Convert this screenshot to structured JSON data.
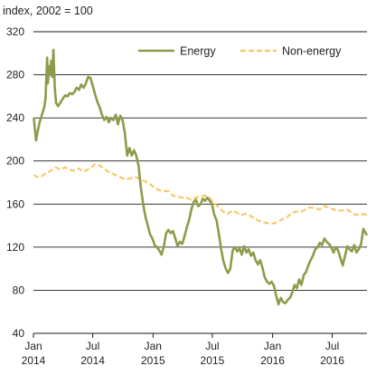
{
  "chart_data": {
    "type": "line",
    "title": "",
    "ylabel": "index, 2002 = 100",
    "xlabel": "",
    "ylim": [
      40,
      320
    ],
    "yticks": [
      40,
      80,
      120,
      160,
      200,
      240,
      280,
      320
    ],
    "xlim": [
      "2014-01-01",
      "2016-10-15"
    ],
    "xticks": [
      {
        "date": "2014-01-01",
        "month": "Jan",
        "year": "2014"
      },
      {
        "date": "2014-07-01",
        "month": "Jul",
        "year": "2014"
      },
      {
        "date": "2015-01-01",
        "month": "Jan",
        "year": "2015"
      },
      {
        "date": "2015-07-01",
        "month": "Jul",
        "year": "2015"
      },
      {
        "date": "2016-01-01",
        "month": "Jan",
        "year": "2016"
      },
      {
        "date": "2016-07-01",
        "month": "Jul",
        "year": "2016"
      }
    ],
    "grid": "horizontal",
    "legend_position": "top-right",
    "series": [
      {
        "name": "Energy",
        "color": "#8f9a4a",
        "style": "solid",
        "points": [
          [
            "2014-01-02",
            240
          ],
          [
            "2014-01-06",
            228
          ],
          [
            "2014-01-09",
            219
          ],
          [
            "2014-01-13",
            226
          ],
          [
            "2014-01-20",
            236
          ],
          [
            "2014-01-27",
            243
          ],
          [
            "2014-02-03",
            250
          ],
          [
            "2014-02-07",
            258
          ],
          [
            "2014-02-10",
            282
          ],
          [
            "2014-02-12",
            296
          ],
          [
            "2014-02-14",
            272
          ],
          [
            "2014-02-18",
            288
          ],
          [
            "2014-02-21",
            280
          ],
          [
            "2014-02-24",
            293
          ],
          [
            "2014-02-27",
            278
          ],
          [
            "2014-03-03",
            303
          ],
          [
            "2014-03-07",
            268
          ],
          [
            "2014-03-11",
            254
          ],
          [
            "2014-03-17",
            251
          ],
          [
            "2014-03-24",
            254
          ],
          [
            "2014-04-01",
            258
          ],
          [
            "2014-04-08",
            261
          ],
          [
            "2014-04-15",
            260
          ],
          [
            "2014-04-22",
            263
          ],
          [
            "2014-04-29",
            262
          ],
          [
            "2014-05-06",
            264
          ],
          [
            "2014-05-13",
            268
          ],
          [
            "2014-05-20",
            266
          ],
          [
            "2014-05-27",
            271
          ],
          [
            "2014-06-03",
            268
          ],
          [
            "2014-06-10",
            272
          ],
          [
            "2014-06-17",
            278
          ],
          [
            "2014-06-24",
            277
          ],
          [
            "2014-07-01",
            270
          ],
          [
            "2014-07-08",
            262
          ],
          [
            "2014-07-15",
            255
          ],
          [
            "2014-07-22",
            250
          ],
          [
            "2014-07-29",
            243
          ],
          [
            "2014-08-05",
            238
          ],
          [
            "2014-08-12",
            241
          ],
          [
            "2014-08-19",
            236
          ],
          [
            "2014-08-26",
            240
          ],
          [
            "2014-09-02",
            238
          ],
          [
            "2014-09-09",
            243
          ],
          [
            "2014-09-16",
            234
          ],
          [
            "2014-09-23",
            242
          ],
          [
            "2014-09-30",
            238
          ],
          [
            "2014-10-07",
            226
          ],
          [
            "2014-10-14",
            205
          ],
          [
            "2014-10-21",
            212
          ],
          [
            "2014-10-28",
            205
          ],
          [
            "2014-11-04",
            210
          ],
          [
            "2014-11-11",
            205
          ],
          [
            "2014-11-18",
            195
          ],
          [
            "2014-11-25",
            175
          ],
          [
            "2014-12-02",
            160
          ],
          [
            "2014-12-09",
            148
          ],
          [
            "2014-12-16",
            140
          ],
          [
            "2014-12-23",
            132
          ],
          [
            "2014-12-30",
            128
          ],
          [
            "2015-01-06",
            122
          ],
          [
            "2015-01-13",
            120
          ],
          [
            "2015-01-20",
            117
          ],
          [
            "2015-01-27",
            113
          ],
          [
            "2015-02-03",
            121
          ],
          [
            "2015-02-10",
            133
          ],
          [
            "2015-02-17",
            136
          ],
          [
            "2015-02-24",
            133
          ],
          [
            "2015-03-03",
            135
          ],
          [
            "2015-03-10",
            128
          ],
          [
            "2015-03-17",
            121
          ],
          [
            "2015-03-24",
            125
          ],
          [
            "2015-03-31",
            123
          ],
          [
            "2015-04-07",
            130
          ],
          [
            "2015-04-14",
            138
          ],
          [
            "2015-04-21",
            145
          ],
          [
            "2015-04-28",
            155
          ],
          [
            "2015-05-05",
            162
          ],
          [
            "2015-05-12",
            164
          ],
          [
            "2015-05-19",
            158
          ],
          [
            "2015-05-26",
            160
          ],
          [
            "2015-06-02",
            165
          ],
          [
            "2015-06-09",
            163
          ],
          [
            "2015-06-16",
            166
          ],
          [
            "2015-06-23",
            163
          ],
          [
            "2015-06-30",
            160
          ],
          [
            "2015-07-07",
            150
          ],
          [
            "2015-07-14",
            145
          ],
          [
            "2015-07-21",
            132
          ],
          [
            "2015-07-28",
            118
          ],
          [
            "2015-08-04",
            107
          ],
          [
            "2015-08-11",
            100
          ],
          [
            "2015-08-18",
            96
          ],
          [
            "2015-08-25",
            100
          ],
          [
            "2015-09-01",
            117
          ],
          [
            "2015-09-08",
            120
          ],
          [
            "2015-09-15",
            116
          ],
          [
            "2015-09-22",
            119
          ],
          [
            "2015-09-29",
            113
          ],
          [
            "2015-10-06",
            121
          ],
          [
            "2015-10-13",
            115
          ],
          [
            "2015-10-20",
            118
          ],
          [
            "2015-10-27",
            112
          ],
          [
            "2015-11-03",
            115
          ],
          [
            "2015-11-10",
            108
          ],
          [
            "2015-11-17",
            104
          ],
          [
            "2015-11-24",
            108
          ],
          [
            "2015-12-01",
            101
          ],
          [
            "2015-12-08",
            92
          ],
          [
            "2015-12-15",
            88
          ],
          [
            "2015-12-22",
            86
          ],
          [
            "2015-12-29",
            88
          ],
          [
            "2016-01-05",
            84
          ],
          [
            "2016-01-12",
            75
          ],
          [
            "2016-01-19",
            67
          ],
          [
            "2016-01-26",
            73
          ],
          [
            "2016-02-02",
            69
          ],
          [
            "2016-02-09",
            68
          ],
          [
            "2016-02-16",
            71
          ],
          [
            "2016-02-23",
            73
          ],
          [
            "2016-03-01",
            78
          ],
          [
            "2016-03-08",
            85
          ],
          [
            "2016-03-15",
            82
          ],
          [
            "2016-03-22",
            90
          ],
          [
            "2016-03-29",
            85
          ],
          [
            "2016-04-05",
            94
          ],
          [
            "2016-04-12",
            97
          ],
          [
            "2016-04-19",
            103
          ],
          [
            "2016-04-26",
            108
          ],
          [
            "2016-05-03",
            112
          ],
          [
            "2016-05-10",
            118
          ],
          [
            "2016-05-17",
            120
          ],
          [
            "2016-05-24",
            124
          ],
          [
            "2016-05-31",
            122
          ],
          [
            "2016-06-07",
            128
          ],
          [
            "2016-06-14",
            125
          ],
          [
            "2016-06-21",
            123
          ],
          [
            "2016-06-28",
            120
          ],
          [
            "2016-07-05",
            115
          ],
          [
            "2016-07-12",
            120
          ],
          [
            "2016-07-19",
            117
          ],
          [
            "2016-07-26",
            110
          ],
          [
            "2016-08-02",
            103
          ],
          [
            "2016-08-09",
            112
          ],
          [
            "2016-08-16",
            121
          ],
          [
            "2016-08-23",
            118
          ],
          [
            "2016-08-30",
            116
          ],
          [
            "2016-09-06",
            122
          ],
          [
            "2016-09-13",
            115
          ],
          [
            "2016-09-20",
            118
          ],
          [
            "2016-09-27",
            123
          ],
          [
            "2016-10-04",
            137
          ],
          [
            "2016-10-11",
            133
          ],
          [
            "2016-10-15",
            131
          ]
        ]
      },
      {
        "name": "Non-energy",
        "color": "#f5c96a",
        "style": "dashed",
        "points": [
          [
            "2014-01-02",
            187
          ],
          [
            "2014-01-13",
            185
          ],
          [
            "2014-01-27",
            186
          ],
          [
            "2014-02-10",
            189
          ],
          [
            "2014-02-24",
            191
          ],
          [
            "2014-03-10",
            194
          ],
          [
            "2014-03-24",
            192
          ],
          [
            "2014-04-07",
            194
          ],
          [
            "2014-04-21",
            192
          ],
          [
            "2014-05-05",
            191
          ],
          [
            "2014-05-19",
            193
          ],
          [
            "2014-06-02",
            190
          ],
          [
            "2014-06-16",
            192
          ],
          [
            "2014-06-30",
            195
          ],
          [
            "2014-07-07",
            197
          ],
          [
            "2014-07-21",
            196
          ],
          [
            "2014-08-04",
            193
          ],
          [
            "2014-08-18",
            190
          ],
          [
            "2014-09-01",
            188
          ],
          [
            "2014-09-15",
            186
          ],
          [
            "2014-09-29",
            184
          ],
          [
            "2014-10-13",
            183
          ],
          [
            "2014-10-27",
            184
          ],
          [
            "2014-11-10",
            185
          ],
          [
            "2014-11-24",
            183
          ],
          [
            "2014-12-08",
            181
          ],
          [
            "2014-12-22",
            179
          ],
          [
            "2015-01-05",
            175
          ],
          [
            "2015-01-19",
            173
          ],
          [
            "2015-02-02",
            172
          ],
          [
            "2015-02-16",
            172
          ],
          [
            "2015-03-02",
            168
          ],
          [
            "2015-03-16",
            167
          ],
          [
            "2015-03-30",
            166
          ],
          [
            "2015-04-13",
            166
          ],
          [
            "2015-04-27",
            164
          ],
          [
            "2015-05-11",
            166
          ],
          [
            "2015-05-25",
            167
          ],
          [
            "2015-06-08",
            168
          ],
          [
            "2015-06-22",
            166
          ],
          [
            "2015-07-06",
            161
          ],
          [
            "2015-07-20",
            157
          ],
          [
            "2015-08-03",
            153
          ],
          [
            "2015-08-17",
            151
          ],
          [
            "2015-08-31",
            154
          ],
          [
            "2015-09-14",
            152
          ],
          [
            "2015-09-28",
            150
          ],
          [
            "2015-10-12",
            151
          ],
          [
            "2015-10-26",
            149
          ],
          [
            "2015-11-09",
            146
          ],
          [
            "2015-11-23",
            144
          ],
          [
            "2015-12-07",
            143
          ],
          [
            "2015-12-21",
            142
          ],
          [
            "2016-01-04",
            142
          ],
          [
            "2016-01-18",
            144
          ],
          [
            "2016-02-01",
            146
          ],
          [
            "2016-02-15",
            148
          ],
          [
            "2016-02-29",
            152
          ],
          [
            "2016-03-14",
            153
          ],
          [
            "2016-03-28",
            153
          ],
          [
            "2016-04-11",
            155
          ],
          [
            "2016-04-25",
            157
          ],
          [
            "2016-05-09",
            156
          ],
          [
            "2016-05-23",
            155
          ],
          [
            "2016-06-06",
            158
          ],
          [
            "2016-06-20",
            157
          ],
          [
            "2016-07-04",
            155
          ],
          [
            "2016-07-18",
            154
          ],
          [
            "2016-08-01",
            154
          ],
          [
            "2016-08-15",
            155
          ],
          [
            "2016-08-29",
            152
          ],
          [
            "2016-09-12",
            150
          ],
          [
            "2016-09-26",
            151
          ],
          [
            "2016-10-15",
            150
          ]
        ]
      }
    ]
  }
}
